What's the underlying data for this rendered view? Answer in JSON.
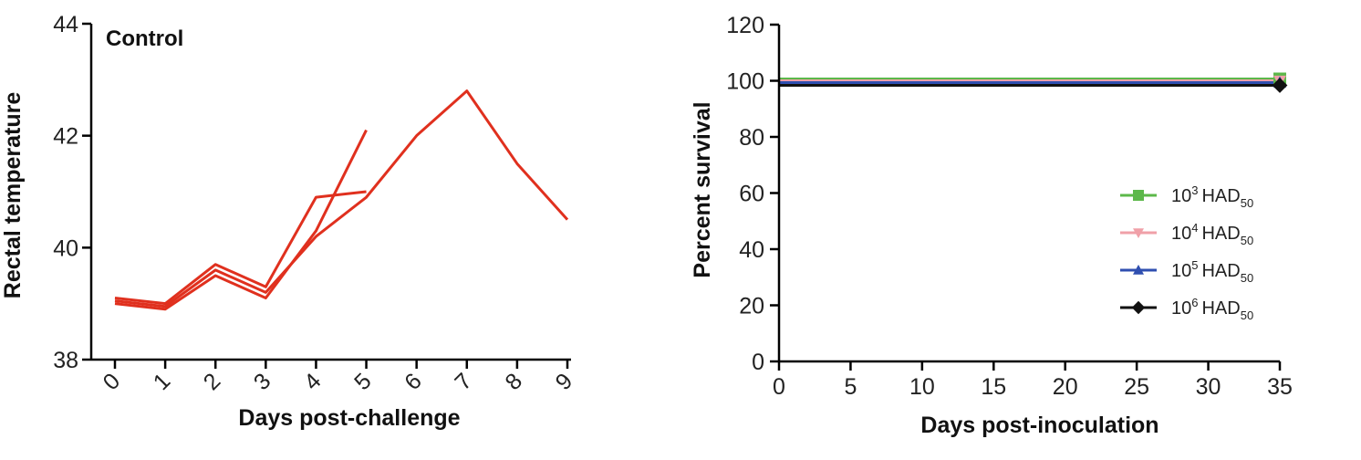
{
  "chart_data": [
    {
      "type": "line",
      "title": "Control",
      "xlabel": "Days post-challenge",
      "ylabel": "Rectal temperature",
      "xlim": [
        0,
        9
      ],
      "ylim": [
        38,
        44
      ],
      "xticks": [
        "0",
        "1",
        "2",
        "3",
        "4",
        "5",
        "6",
        "7",
        "8",
        "9"
      ],
      "yticks": [
        "38",
        "40",
        "42",
        "44"
      ],
      "series_color": "#e0301e",
      "series": [
        {
          "x": [
            0,
            1,
            2,
            3,
            4,
            5
          ],
          "y": [
            39.1,
            39.0,
            39.7,
            39.3,
            40.9,
            41.0
          ]
        },
        {
          "x": [
            0,
            1,
            2,
            3,
            4,
            5
          ],
          "y": [
            39.0,
            38.9,
            39.5,
            39.1,
            40.3,
            42.1
          ]
        },
        {
          "x": [
            0,
            1,
            2,
            3,
            4,
            5,
            6,
            7,
            8,
            9
          ],
          "y": [
            39.05,
            38.95,
            39.6,
            39.2,
            40.2,
            40.9,
            42.0,
            42.8,
            41.5,
            40.5
          ]
        }
      ]
    },
    {
      "type": "line",
      "title": "",
      "xlabel": "Days post-inoculation",
      "ylabel": "Percent survival",
      "xlim": [
        0,
        35
      ],
      "ylim": [
        0,
        120
      ],
      "xticks": [
        "0",
        "5",
        "10",
        "15",
        "20",
        "25",
        "30",
        "35"
      ],
      "yticks": [
        "0",
        "20",
        "40",
        "60",
        "80",
        "100",
        "120"
      ],
      "legend_placement": "right",
      "series": [
        {
          "name_base": "10",
          "name_exp": "3",
          "name_unit": "HAD",
          "name_sub": "50",
          "color": "#5cb84a",
          "marker": "square",
          "x": [
            0,
            35
          ],
          "y": [
            100,
            100
          ]
        },
        {
          "name_base": "10",
          "name_exp": "4",
          "name_unit": "HAD",
          "name_sub": "50",
          "color": "#f0a0a8",
          "marker": "triangle-down",
          "x": [
            0,
            35
          ],
          "y": [
            100,
            100
          ]
        },
        {
          "name_base": "10",
          "name_exp": "5",
          "name_unit": "HAD",
          "name_sub": "50",
          "color": "#2f4fb0",
          "marker": "triangle-up",
          "x": [
            0,
            35
          ],
          "y": [
            100,
            100
          ]
        },
        {
          "name_base": "10",
          "name_exp": "6",
          "name_unit": "HAD",
          "name_sub": "50",
          "color": "#111111",
          "marker": "diamond",
          "x": [
            0,
            35
          ],
          "y": [
            100,
            100
          ]
        }
      ]
    }
  ]
}
